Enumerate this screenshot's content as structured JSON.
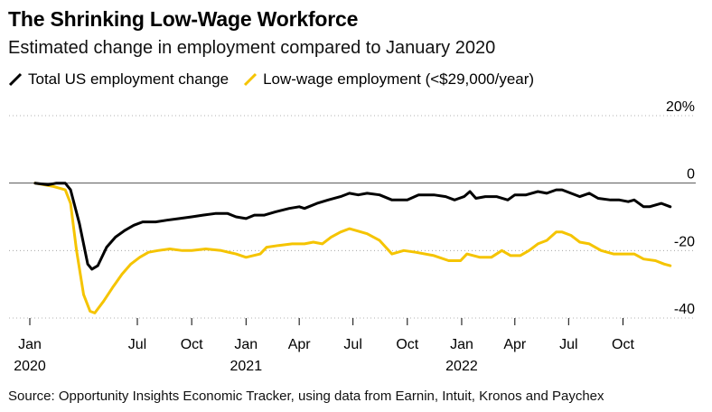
{
  "title": "The Shrinking Low-Wage Workforce",
  "subtitle": "Estimated change in employment compared to January 2020",
  "source": "Source: Opportunity Insights Economic Tracker, using data from Earnin, Intuit, Kronos and Paychex",
  "colors": {
    "total": "#000000",
    "low_wage": "#f5c400",
    "gridline": "#888888"
  },
  "chart_data": {
    "type": "line",
    "title": "The Shrinking Low-Wage Workforce",
    "subtitle": "Estimated change in employment compared to January 2020",
    "ylim": [
      -40,
      20
    ],
    "xlim": [
      "2020-01-01",
      "2022-12-31"
    ],
    "y_ticks": [
      20,
      0,
      -20,
      -40
    ],
    "y_tick_labels": [
      "20%",
      "0",
      "-20",
      "-40"
    ],
    "x_ticks": [
      {
        "date": "2020-01-01",
        "label": "Jan",
        "year": "2020"
      },
      {
        "date": "2020-07-01",
        "label": "Jul",
        "year": ""
      },
      {
        "date": "2020-10-01",
        "label": "Oct",
        "year": ""
      },
      {
        "date": "2021-01-01",
        "label": "Jan",
        "year": "2021"
      },
      {
        "date": "2021-04-01",
        "label": "Apr",
        "year": ""
      },
      {
        "date": "2021-07-01",
        "label": "Jul",
        "year": ""
      },
      {
        "date": "2021-10-01",
        "label": "Oct",
        "year": ""
      },
      {
        "date": "2022-01-01",
        "label": "Jan",
        "year": "2022"
      },
      {
        "date": "2022-04-01",
        "label": "Apr",
        "year": ""
      },
      {
        "date": "2022-07-01",
        "label": "Jul",
        "year": ""
      },
      {
        "date": "2022-10-01",
        "label": "Oct",
        "year": ""
      }
    ],
    "legend_placement": "top-left",
    "series": [
      {
        "name": "Total US employment change",
        "color": "#000000",
        "points": [
          [
            "2020-01-10",
            0
          ],
          [
            "2020-02-01",
            -0.5
          ],
          [
            "2020-02-15",
            0
          ],
          [
            "2020-03-01",
            0
          ],
          [
            "2020-03-10",
            -2
          ],
          [
            "2020-03-25",
            -12
          ],
          [
            "2020-04-08",
            -24
          ],
          [
            "2020-04-15",
            -25.5
          ],
          [
            "2020-04-25",
            -24.5
          ],
          [
            "2020-05-10",
            -19
          ],
          [
            "2020-05-25",
            -16
          ],
          [
            "2020-06-10",
            -14
          ],
          [
            "2020-06-25",
            -12.5
          ],
          [
            "2020-07-10",
            -11.5
          ],
          [
            "2020-08-01",
            -11.5
          ],
          [
            "2020-08-20",
            -11
          ],
          [
            "2020-09-10",
            -10.5
          ],
          [
            "2020-10-01",
            -10
          ],
          [
            "2020-10-20",
            -9.5
          ],
          [
            "2020-11-10",
            -9
          ],
          [
            "2020-12-01",
            -9
          ],
          [
            "2020-12-15",
            -10
          ],
          [
            "2021-01-01",
            -10.5
          ],
          [
            "2021-01-15",
            -9.5
          ],
          [
            "2021-02-01",
            -9.5
          ],
          [
            "2021-02-20",
            -8.5
          ],
          [
            "2021-03-15",
            -7.5
          ],
          [
            "2021-04-01",
            -7
          ],
          [
            "2021-04-10",
            -7.5
          ],
          [
            "2021-05-01",
            -6
          ],
          [
            "2021-05-20",
            -5
          ],
          [
            "2021-06-10",
            -4
          ],
          [
            "2021-06-25",
            -3
          ],
          [
            "2021-07-10",
            -3.5
          ],
          [
            "2021-07-25",
            -3
          ],
          [
            "2021-08-15",
            -3.5
          ],
          [
            "2021-09-05",
            -5
          ],
          [
            "2021-10-01",
            -5
          ],
          [
            "2021-10-20",
            -3.5
          ],
          [
            "2021-11-15",
            -3.5
          ],
          [
            "2021-12-05",
            -4
          ],
          [
            "2021-12-20",
            -5
          ],
          [
            "2022-01-05",
            -4
          ],
          [
            "2022-01-15",
            -2.5
          ],
          [
            "2022-01-25",
            -4.5
          ],
          [
            "2022-02-10",
            -4
          ],
          [
            "2022-03-01",
            -4
          ],
          [
            "2022-03-20",
            -5
          ],
          [
            "2022-04-01",
            -3.5
          ],
          [
            "2022-04-20",
            -3.5
          ],
          [
            "2022-05-10",
            -2.5
          ],
          [
            "2022-05-25",
            -3
          ],
          [
            "2022-06-10",
            -2
          ],
          [
            "2022-06-20",
            -2
          ],
          [
            "2022-07-05",
            -3
          ],
          [
            "2022-07-20",
            -4
          ],
          [
            "2022-08-05",
            -3
          ],
          [
            "2022-08-20",
            -4.5
          ],
          [
            "2022-09-10",
            -5
          ],
          [
            "2022-09-25",
            -5
          ],
          [
            "2022-10-10",
            -5.5
          ],
          [
            "2022-10-20",
            -5
          ],
          [
            "2022-11-05",
            -7
          ],
          [
            "2022-11-15",
            -7
          ],
          [
            "2022-11-25",
            -6.5
          ],
          [
            "2022-12-05",
            -6
          ],
          [
            "2022-12-20",
            -7
          ]
        ]
      },
      {
        "name": "Low-wage employment (<$29,000/year)",
        "color": "#f5c400",
        "points": [
          [
            "2020-01-10",
            0
          ],
          [
            "2020-02-10",
            -1
          ],
          [
            "2020-03-01",
            -2
          ],
          [
            "2020-03-10",
            -6
          ],
          [
            "2020-03-20",
            -20
          ],
          [
            "2020-04-01",
            -33
          ],
          [
            "2020-04-12",
            -38
          ],
          [
            "2020-04-20",
            -38.5
          ],
          [
            "2020-05-05",
            -35
          ],
          [
            "2020-05-20",
            -31
          ],
          [
            "2020-06-05",
            -27
          ],
          [
            "2020-06-20",
            -24
          ],
          [
            "2020-07-05",
            -22
          ],
          [
            "2020-07-20",
            -20.5
          ],
          [
            "2020-08-05",
            -20
          ],
          [
            "2020-08-25",
            -19.5
          ],
          [
            "2020-09-15",
            -20
          ],
          [
            "2020-10-01",
            -20
          ],
          [
            "2020-10-25",
            -19.5
          ],
          [
            "2020-11-20",
            -20
          ],
          [
            "2020-12-15",
            -21
          ],
          [
            "2021-01-01",
            -22
          ],
          [
            "2021-01-25",
            -21
          ],
          [
            "2021-02-05",
            -19
          ],
          [
            "2021-02-25",
            -18.5
          ],
          [
            "2021-03-20",
            -18
          ],
          [
            "2021-04-10",
            -18
          ],
          [
            "2021-04-25",
            -17.5
          ],
          [
            "2021-05-10",
            -18
          ],
          [
            "2021-05-25",
            -16
          ],
          [
            "2021-06-10",
            -14.5
          ],
          [
            "2021-06-25",
            -13.5
          ],
          [
            "2021-07-05",
            -14
          ],
          [
            "2021-07-25",
            -15
          ],
          [
            "2021-08-15",
            -17
          ],
          [
            "2021-09-05",
            -21
          ],
          [
            "2021-09-25",
            -20
          ],
          [
            "2021-10-15",
            -20.5
          ],
          [
            "2021-11-15",
            -21.5
          ],
          [
            "2021-12-10",
            -23
          ],
          [
            "2021-12-30",
            -23
          ],
          [
            "2022-01-10",
            -21
          ],
          [
            "2022-02-01",
            -22
          ],
          [
            "2022-02-20",
            -22
          ],
          [
            "2022-03-10",
            -20
          ],
          [
            "2022-03-25",
            -21.5
          ],
          [
            "2022-04-10",
            -21.5
          ],
          [
            "2022-04-25",
            -20
          ],
          [
            "2022-05-10",
            -18
          ],
          [
            "2022-05-25",
            -17
          ],
          [
            "2022-06-10",
            -14.5
          ],
          [
            "2022-06-20",
            -14.5
          ],
          [
            "2022-07-05",
            -15.5
          ],
          [
            "2022-07-20",
            -17.5
          ],
          [
            "2022-08-05",
            -18
          ],
          [
            "2022-08-25",
            -20
          ],
          [
            "2022-09-15",
            -21
          ],
          [
            "2022-10-05",
            -21
          ],
          [
            "2022-10-20",
            -21
          ],
          [
            "2022-11-05",
            -22.5
          ],
          [
            "2022-11-25",
            -23
          ],
          [
            "2022-12-10",
            -24
          ],
          [
            "2022-12-20",
            -24.5
          ]
        ]
      }
    ]
  }
}
